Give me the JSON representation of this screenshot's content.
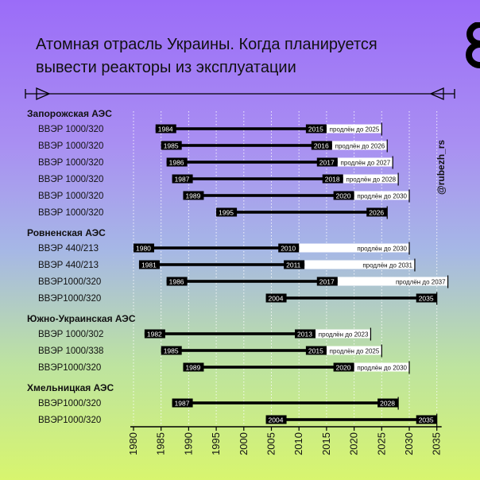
{
  "title_lines": [
    "Атомная отрасль Украины. Когда планируется",
    "вывести реакторы из эксплуатации"
  ],
  "handle": "@rubezh_rs",
  "colors": {
    "bar": "#000000",
    "extension": "#ffffff",
    "grid": "#ffffff",
    "text": "#111111"
  },
  "icons": [
    "arrow-tail-left-icon",
    "arrow-head-right-icon",
    "logo-eight-icon"
  ],
  "chart_data": {
    "type": "timeline",
    "xlim": [
      1980,
      2035
    ],
    "xticks": [
      1980,
      1985,
      1990,
      1995,
      2000,
      2005,
      2010,
      2015,
      2020,
      2025,
      2030,
      2035
    ],
    "groups": [
      {
        "name": "Запорожская АЭС",
        "reactors": [
          {
            "type": "ВВЭР 1000/320",
            "start": 1984,
            "end": 2015,
            "extended": 2025,
            "start_label": "1984",
            "end_label": "2015",
            "ext_label": "продлён до 2025"
          },
          {
            "type": "ВВЭР 1000/320",
            "start": 1985,
            "end": 2016,
            "extended": 2026,
            "start_label": "1985",
            "end_label": "2016",
            "ext_label": "продлён до 2026"
          },
          {
            "type": "ВВЭР 1000/320",
            "start": 1986,
            "end": 2017,
            "extended": 2027,
            "start_label": "1986",
            "end_label": "2017",
            "ext_label": "продлён до 2027"
          },
          {
            "type": "ВВЭР 1000/320",
            "start": 1987,
            "end": 2018,
            "extended": 2028,
            "start_label": "1987",
            "end_label": "2018",
            "ext_label": "продлён до 2028"
          },
          {
            "type": "ВВЭР 1000/320",
            "start": 1989,
            "end": 2020,
            "extended": 2030,
            "start_label": "1989",
            "end_label": "2020",
            "ext_label": "продлён до 2030"
          },
          {
            "type": "ВВЭР 1000/320",
            "start": 1995,
            "end": 2026,
            "extended": null,
            "start_label": "1995",
            "end_label": "2026",
            "ext_label": ""
          }
        ]
      },
      {
        "name": "Ровненская АЭС",
        "reactors": [
          {
            "type": "ВВЭР 440/213",
            "start": 1980,
            "end": 2010,
            "extended": 2030,
            "start_label": "1980",
            "end_label": "2010",
            "ext_label": "продлён до 2030"
          },
          {
            "type": "ВВЭР 440/213",
            "start": 1981,
            "end": 2011,
            "extended": 2031,
            "start_label": "1981",
            "end_label": "2011",
            "ext_label": "продлён до 2031"
          },
          {
            "type": "ВВЭР1000/320",
            "start": 1986,
            "end": 2017,
            "extended": 2037,
            "start_label": "1986",
            "end_label": "2017",
            "ext_label": "продлён до 2037"
          },
          {
            "type": "ВВЭР1000/320",
            "start": 2004,
            "end": 2035,
            "extended": null,
            "start_label": "2004",
            "end_label": "2035",
            "ext_label": ""
          }
        ]
      },
      {
        "name": "Южно-Украинская АЭС",
        "reactors": [
          {
            "type": "ВВЭР 1000/302",
            "start": 1982,
            "end": 2013,
            "extended": 2023,
            "start_label": "1982",
            "end_label": "2013",
            "ext_label": "продлён до 2023"
          },
          {
            "type": "ВВЭР 1000/338",
            "start": 1985,
            "end": 2015,
            "extended": 2025,
            "start_label": "1985",
            "end_label": "2015",
            "ext_label": "продлён до 2025"
          },
          {
            "type": "ВВЭР1000/320",
            "start": 1989,
            "end": 2020,
            "extended": 2030,
            "start_label": "1989",
            "end_label": "2020",
            "ext_label": "продлён до 2030"
          }
        ]
      },
      {
        "name": "Хмельницкая АЭС",
        "reactors": [
          {
            "type": "ВВЭР1000/320",
            "start": 1987,
            "end": 2028,
            "extended": null,
            "start_label": "1987",
            "end_label": "2028",
            "ext_label": ""
          },
          {
            "type": "ВВЭР1000/320",
            "start": 2004,
            "end": 2035,
            "extended": null,
            "start_label": "2004",
            "end_label": "2035",
            "ext_label": ""
          }
        ]
      }
    ]
  }
}
